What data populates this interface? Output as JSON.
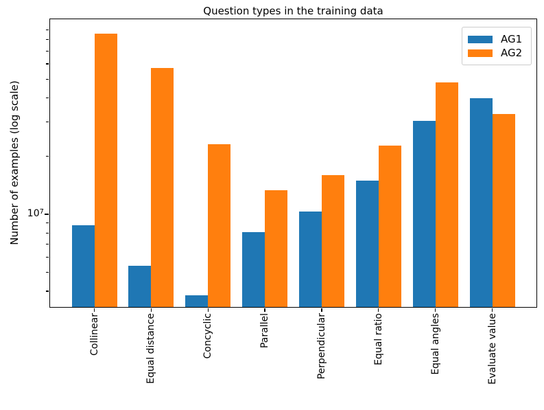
{
  "chart_data": {
    "type": "bar",
    "title": "Question types in the training data",
    "ylabel": "Number of examples (log scale)",
    "xlabel": "",
    "yscale": "log",
    "grid": false,
    "legend_position": "upper right",
    "categories": [
      "Collinear",
      "Equal distance",
      "Concyclic",
      "Parallel",
      "Perpendicular",
      "Equal ratio",
      "Equal angles",
      "Evaluate value"
    ],
    "series": [
      {
        "name": "AG1",
        "color": "#1f77b4",
        "values": [
          8800000,
          5400000,
          3800000,
          8100000,
          10300000,
          15000000,
          30500000,
          40000000
        ]
      },
      {
        "name": "AG2",
        "color": "#ff7f0e",
        "values": [
          86000000,
          57000000,
          23000000,
          13300000,
          16000000,
          22600000,
          48000000,
          33000000
        ]
      }
    ],
    "ylim": [
      3300000,
      103000000
    ],
    "ytick_major": {
      "value": 10000000,
      "base": "10",
      "exponent": "7"
    },
    "yticks_minor": [
      4000000,
      5000000,
      6000000,
      7000000,
      8000000,
      9000000,
      20000000,
      30000000,
      40000000,
      50000000,
      60000000,
      70000000,
      80000000,
      90000000
    ]
  }
}
